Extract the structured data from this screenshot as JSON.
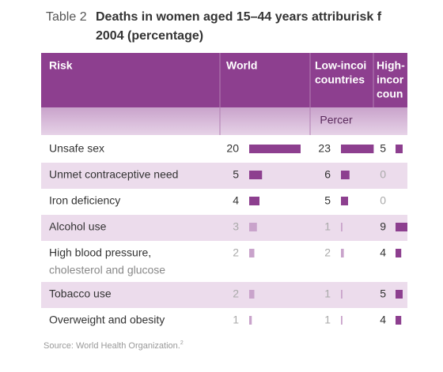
{
  "title": {
    "number": "Table 2",
    "lines": [
      "Deaths in women aged 15–44 years attriburisk f",
      "2004 (percentage)"
    ]
  },
  "table": {
    "header": [
      [
        "Risk"
      ],
      [
        "World"
      ],
      [
        "Low-incoi",
        "countries"
      ],
      [
        "High-",
        "incor",
        "coun"
      ]
    ],
    "unit_row": "Percer",
    "rows": [
      {
        "risk": [
          "Unsafe sex"
        ],
        "values": [
          20,
          23,
          5
        ]
      },
      {
        "risk": [
          "Unmet contraceptive need"
        ],
        "values": [
          5,
          6,
          0
        ]
      },
      {
        "risk": [
          "Iron deficiency"
        ],
        "values": [
          4,
          5,
          0
        ]
      },
      {
        "risk": [
          "Alcohol use"
        ],
        "values": [
          3,
          1,
          9
        ]
      },
      {
        "risk": [
          "High blood pressure,",
          "cholesterol and glucose"
        ],
        "values": [
          2,
          2,
          4
        ]
      },
      {
        "risk": [
          "Tobacco use"
        ],
        "values": [
          2,
          1,
          5
        ]
      },
      {
        "risk": [
          "Overweight and obesity"
        ],
        "values": [
          1,
          1,
          4
        ]
      }
    ]
  },
  "source": {
    "text": "Source: World Health Organization.",
    "note": "2"
  }
}
